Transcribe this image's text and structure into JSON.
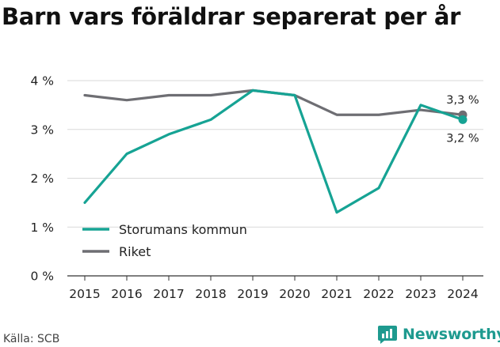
{
  "chart_data": {
    "type": "line",
    "title": "Barn vars föräldrar separerat per år",
    "categories": [
      "2015",
      "2016",
      "2017",
      "2018",
      "2019",
      "2020",
      "2021",
      "2022",
      "2023",
      "2024"
    ],
    "ylim": [
      0,
      4
    ],
    "y_ticks": [
      0,
      1,
      2,
      3,
      4
    ],
    "y_tick_labels": [
      "0 %",
      "1 %",
      "2 %",
      "3 %",
      "4 %"
    ],
    "grid": "horizontal",
    "legend_position": "bottom-left",
    "series": [
      {
        "name": "Storumans kommun",
        "color": "#16a394",
        "values": [
          1.5,
          2.5,
          2.9,
          3.2,
          3.8,
          3.7,
          1.3,
          1.8,
          3.5,
          3.2
        ],
        "end_label": "3,2 %"
      },
      {
        "name": "Riket",
        "color": "#6e6e73",
        "values": [
          3.7,
          3.6,
          3.7,
          3.7,
          3.8,
          3.7,
          3.3,
          3.3,
          3.4,
          3.3
        ],
        "end_label": "3,3 %"
      }
    ]
  },
  "source": "Källa: SCB",
  "brand": {
    "name": "Newsworthy",
    "icon": "newsworthy-logo-icon",
    "color": "#1e9a8f"
  }
}
